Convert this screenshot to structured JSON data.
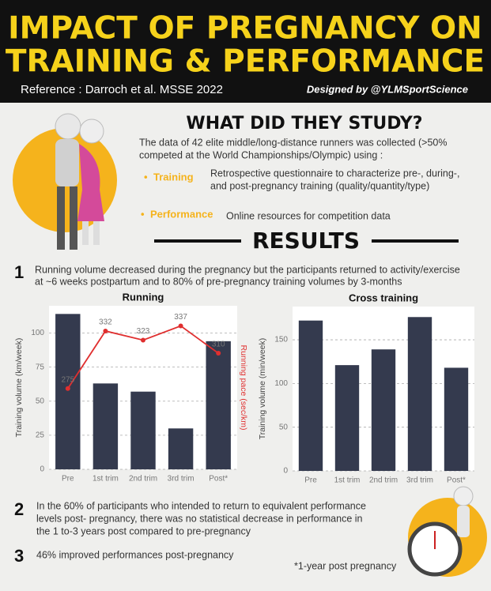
{
  "header": {
    "title_lines": [
      "IMPACT OF PREGNANCY ON",
      "TRAINING & PERFORMANCE"
    ],
    "reference": "Reference : Darroch et al. MSSE 2022",
    "credit": "Designed by @YLMSportScience"
  },
  "study": {
    "heading": "WHAT DID THEY STUDY?",
    "intro_lines": [
      "The data of 42 elite middle/long-distance runners was collected (>50%",
      "competed at the World Championships/Olympic) using :"
    ],
    "items": [
      {
        "label": "Training",
        "lines": [
          "Retrospective questionnaire to characterize pre-, during-,",
          "and post-pregnancy training (quality/quantity/type)"
        ]
      },
      {
        "label": "Performance",
        "lines": [
          "Online resources for competition data"
        ]
      }
    ]
  },
  "results": {
    "heading": "RESULTS",
    "findings": [
      {
        "number": "1",
        "lines": [
          "Running volume decreased during the pregnancy but the participants returned to activity/exercise",
          "at ~6 weeks postpartum and to 80% of pre-pregnancy training volumes by 3-months"
        ]
      },
      {
        "number": "2",
        "lines": [
          "In the 60% of participants who intended to return to equivalent performance",
          "levels post- pregnancy, there was no statistical decrease in performance in",
          "the 1 to-3 years post compared to pre-pregnancy"
        ]
      },
      {
        "number": "3",
        "lines": [
          "46% improved performances post-pregnancy"
        ]
      }
    ],
    "footnote": "*1-year post pregnancy"
  },
  "chart_data": [
    {
      "type": "bar",
      "title": "Running",
      "y_label": "Training volume (km/week)",
      "y2_label": "Running pace (sec/km)",
      "categories": [
        "Pre",
        "1st trim",
        "2nd trim",
        "3rd trim",
        "Post*"
      ],
      "series": [
        {
          "type": "bar",
          "color": "#343a4e",
          "values": [
            114,
            63,
            57,
            30,
            94
          ]
        },
        {
          "type": "line",
          "axis": "y2",
          "color": "#e02f2f",
          "values": [
            275,
            332,
            323,
            337,
            310
          ]
        }
      ],
      "ylim": [
        0,
        120
      ],
      "yticks": [
        0,
        25,
        50,
        75,
        100
      ],
      "y2lim": [
        195,
        357
      ],
      "grid": true
    },
    {
      "type": "bar",
      "title": "Cross training",
      "y_label": "Training volume (min/week)",
      "categories": [
        "Pre",
        "1st trim",
        "2nd trim",
        "3rd trim",
        "Post*"
      ],
      "series": [
        {
          "type": "bar",
          "color": "#343a4e",
          "values": [
            172,
            121,
            139,
            176,
            118
          ]
        }
      ],
      "ylim": [
        0,
        188
      ],
      "yticks": [
        0,
        50,
        100,
        150
      ],
      "grid": true
    }
  ]
}
